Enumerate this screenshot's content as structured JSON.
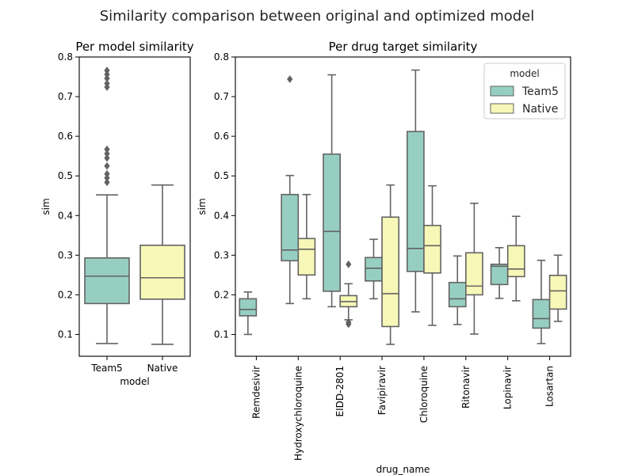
{
  "chart_data": {
    "suptitle": "Similarity comparison between original and optimized model",
    "colors": {
      "Team5": "#96cfc1",
      "Native": "#f7f7b7",
      "line": "#636363",
      "axis": "#000000"
    },
    "panels": [
      {
        "type": "box",
        "title": "Per model similarity",
        "xlabel": "model",
        "ylabel": "sim",
        "ylim": [
          0.045,
          0.8
        ],
        "yticks": [
          0.1,
          0.2,
          0.3,
          0.4,
          0.5,
          0.6,
          0.7,
          0.8
        ],
        "categories": [
          "Team5",
          "Native"
        ],
        "boxes": [
          {
            "category": "Team5",
            "series": "Team5",
            "whisker_low": 0.077,
            "q1": 0.178,
            "median": 0.247,
            "q3": 0.293,
            "whisker_high": 0.452,
            "outliers": [
              0.484,
              0.495,
              0.505,
              0.525,
              0.545,
              0.556,
              0.567,
              0.724,
              0.733,
              0.746,
              0.756,
              0.766
            ]
          },
          {
            "category": "Native",
            "series": "Native",
            "whisker_low": 0.075,
            "q1": 0.189,
            "median": 0.243,
            "q3": 0.325,
            "whisker_high": 0.477,
            "outliers": []
          }
        ]
      },
      {
        "type": "box",
        "title": "Per drug target similarity",
        "xlabel": "drug_name",
        "ylabel": "sim",
        "ylim": [
          0.045,
          0.8
        ],
        "yticks": [
          0.1,
          0.2,
          0.3,
          0.4,
          0.5,
          0.6,
          0.7,
          0.8
        ],
        "categories": [
          "Remdesivir",
          "Hydroxychloroquine",
          "EIDD-2801",
          "Favipiravir",
          "Chloroquine",
          "Ritonavir",
          "Lopinavir",
          "Losartan"
        ],
        "series": [
          "Team5",
          "Native"
        ],
        "legend": {
          "title": "model",
          "placement": "upper right",
          "entries": [
            "Team5",
            "Native"
          ]
        },
        "boxes": [
          {
            "category": "Remdesivir",
            "series": "Team5",
            "whisker_low": 0.1,
            "q1": 0.147,
            "median": 0.163,
            "q3": 0.19,
            "whisker_high": 0.207,
            "outliers": []
          },
          {
            "category": "Hydroxychloroquine",
            "series": "Team5",
            "whisker_low": 0.178,
            "q1": 0.286,
            "median": 0.313,
            "q3": 0.453,
            "whisker_high": 0.501,
            "outliers": [
              0.744
            ]
          },
          {
            "category": "Hydroxychloroquine",
            "series": "Native",
            "whisker_low": 0.19,
            "q1": 0.25,
            "median": 0.315,
            "q3": 0.342,
            "whisker_high": 0.453,
            "outliers": []
          },
          {
            "category": "EIDD-2801",
            "series": "Team5",
            "whisker_low": 0.17,
            "q1": 0.209,
            "median": 0.36,
            "q3": 0.555,
            "whisker_high": 0.755,
            "outliers": []
          },
          {
            "category": "EIDD-2801",
            "series": "Native",
            "whisker_low": 0.137,
            "q1": 0.17,
            "median": 0.183,
            "q3": 0.198,
            "whisker_high": 0.228,
            "outliers": [
              0.126,
              0.131,
              0.277
            ]
          },
          {
            "category": "Favipiravir",
            "series": "Team5",
            "whisker_low": 0.19,
            "q1": 0.235,
            "median": 0.267,
            "q3": 0.294,
            "whisker_high": 0.34,
            "outliers": []
          },
          {
            "category": "Favipiravir",
            "series": "Native",
            "whisker_low": 0.075,
            "q1": 0.12,
            "median": 0.203,
            "q3": 0.396,
            "whisker_high": 0.477,
            "outliers": []
          },
          {
            "category": "Chloroquine",
            "series": "Team5",
            "whisker_low": 0.157,
            "q1": 0.259,
            "median": 0.317,
            "q3": 0.612,
            "whisker_high": 0.767,
            "outliers": []
          },
          {
            "category": "Chloroquine",
            "series": "Native",
            "whisker_low": 0.123,
            "q1": 0.255,
            "median": 0.324,
            "q3": 0.375,
            "whisker_high": 0.475,
            "outliers": []
          },
          {
            "category": "Ritonavir",
            "series": "Team5",
            "whisker_low": 0.125,
            "q1": 0.17,
            "median": 0.19,
            "q3": 0.231,
            "whisker_high": 0.298,
            "outliers": []
          },
          {
            "category": "Ritonavir",
            "series": "Native",
            "whisker_low": 0.101,
            "q1": 0.2,
            "median": 0.222,
            "q3": 0.306,
            "whisker_high": 0.431,
            "outliers": []
          },
          {
            "category": "Lopinavir",
            "series": "Team5",
            "whisker_low": 0.191,
            "q1": 0.226,
            "median": 0.272,
            "q3": 0.277,
            "whisker_high": 0.319,
            "outliers": []
          },
          {
            "category": "Lopinavir",
            "series": "Native",
            "whisker_low": 0.185,
            "q1": 0.246,
            "median": 0.265,
            "q3": 0.324,
            "whisker_high": 0.398,
            "outliers": []
          },
          {
            "category": "Losartan",
            "series": "Team5",
            "whisker_low": 0.077,
            "q1": 0.116,
            "median": 0.14,
            "q3": 0.188,
            "whisker_high": 0.287,
            "outliers": []
          },
          {
            "category": "Losartan",
            "series": "Native",
            "whisker_low": 0.133,
            "q1": 0.164,
            "median": 0.21,
            "q3": 0.249,
            "whisker_high": 0.3,
            "outliers": []
          }
        ]
      }
    ]
  }
}
